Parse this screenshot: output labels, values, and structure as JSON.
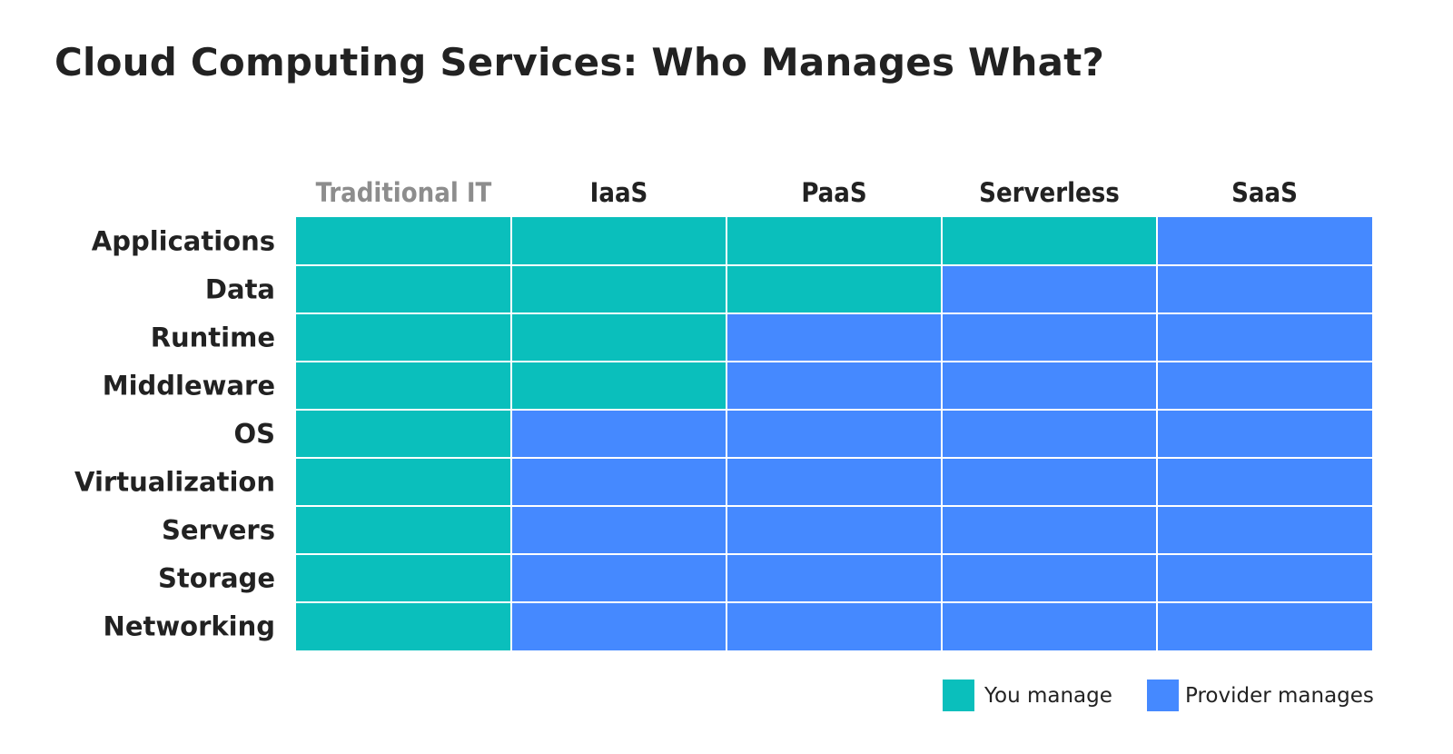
{
  "title": "Cloud Computing Services: Who Manages What?",
  "colors": {
    "you_manage": "#0abfbc",
    "provider_manages": "#4589ff",
    "header_dim": "#8d8d8d",
    "text": "#222222",
    "grid_line": "#ffffff"
  },
  "chart_data": {
    "type": "heatmap",
    "title": "Cloud Computing Services: Who Manages What?",
    "columns": [
      "Traditional IT",
      "IaaS",
      "PaaS",
      "Serverless",
      "SaaS"
    ],
    "dimmed_columns": [
      "Traditional IT"
    ],
    "rows": [
      "Applications",
      "Data",
      "Runtime",
      "Middleware",
      "OS",
      "Virtualization",
      "Servers",
      "Storage",
      "Networking"
    ],
    "values": [
      [
        "You manage",
        "You manage",
        "You manage",
        "You manage",
        "Provider manages"
      ],
      [
        "You manage",
        "You manage",
        "You manage",
        "Provider manages",
        "Provider manages"
      ],
      [
        "You manage",
        "You manage",
        "Provider manages",
        "Provider manages",
        "Provider manages"
      ],
      [
        "You manage",
        "You manage",
        "Provider manages",
        "Provider manages",
        "Provider manages"
      ],
      [
        "You manage",
        "Provider manages",
        "Provider manages",
        "Provider manages",
        "Provider manages"
      ],
      [
        "You manage",
        "Provider manages",
        "Provider manages",
        "Provider manages",
        "Provider manages"
      ],
      [
        "You manage",
        "Provider manages",
        "Provider manages",
        "Provider manages",
        "Provider manages"
      ],
      [
        "You manage",
        "Provider manages",
        "Provider manages",
        "Provider manages",
        "Provider manages"
      ],
      [
        "You manage",
        "Provider manages",
        "Provider manages",
        "Provider manages",
        "Provider manages"
      ]
    ],
    "legend": [
      {
        "label": "You manage",
        "color": "#0abfbc"
      },
      {
        "label": "Provider manages",
        "color": "#4589ff"
      }
    ],
    "legend_position": "bottom-right",
    "grid": true
  }
}
